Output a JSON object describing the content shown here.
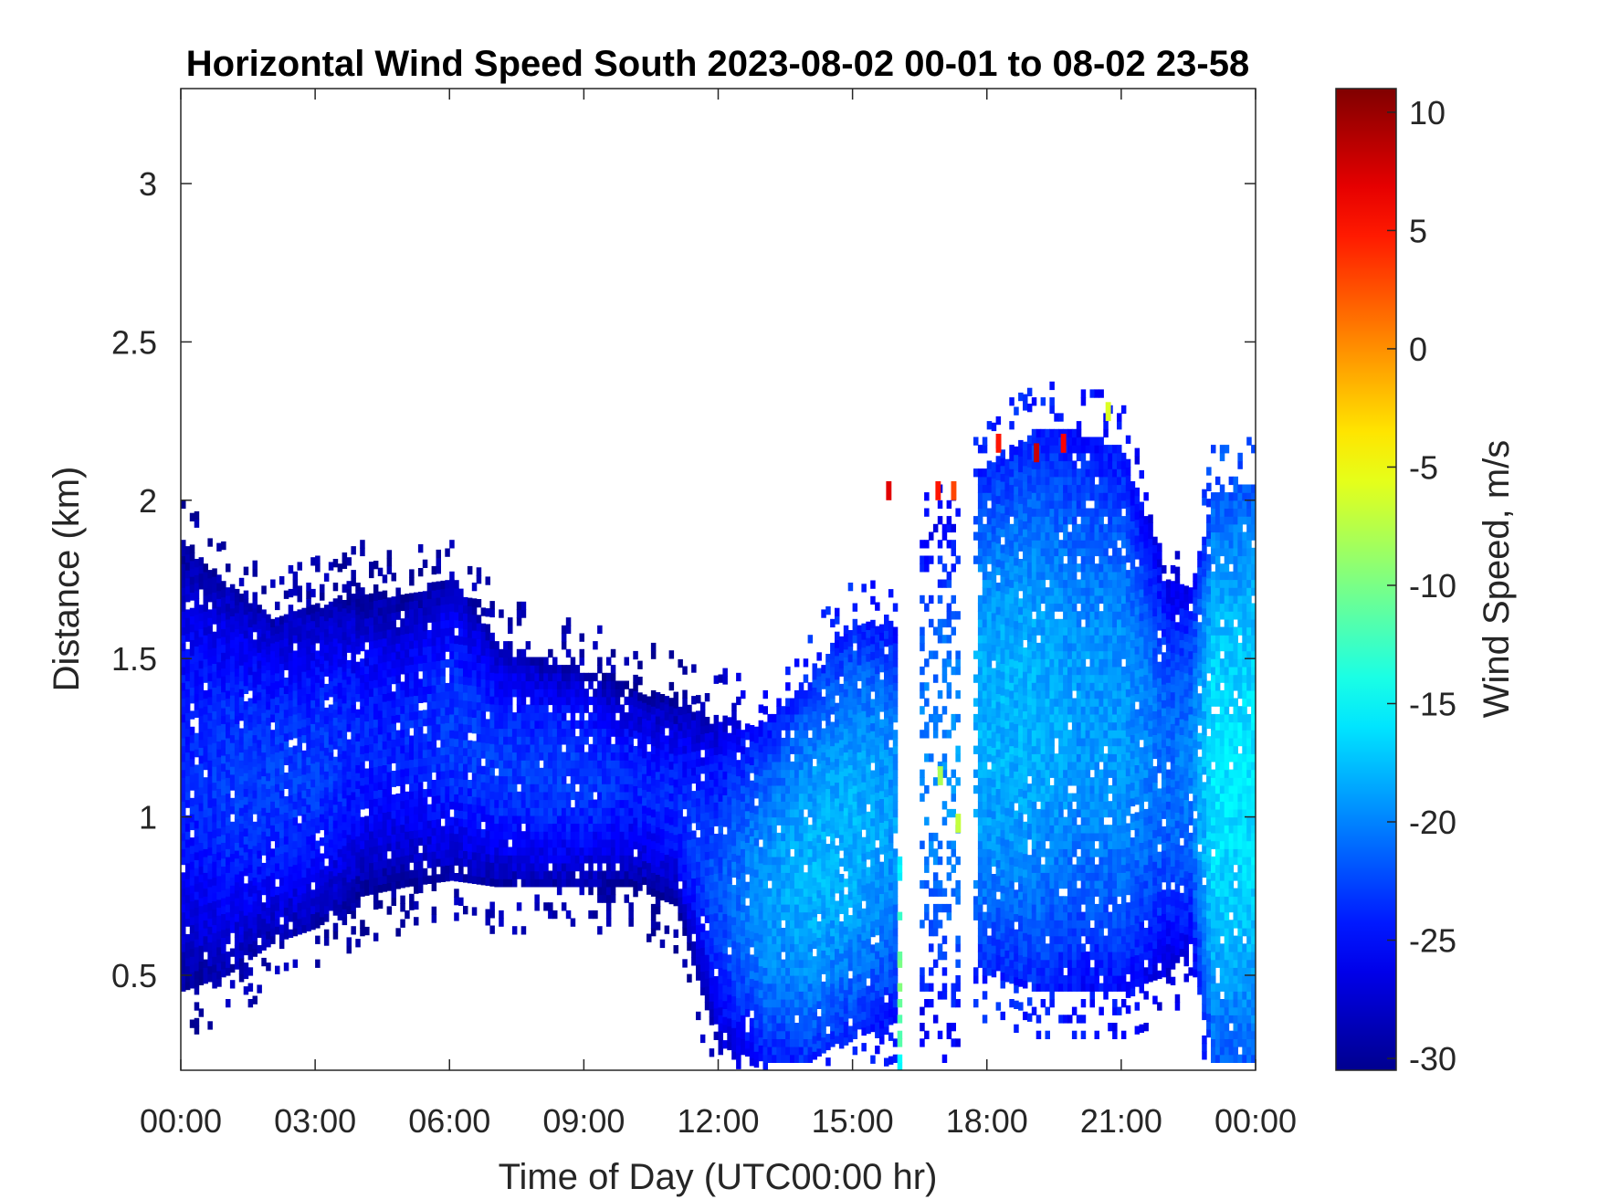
{
  "chart_data": {
    "type": "heatmap",
    "title": "Horizontal Wind Speed South 2023-08-02 00-01 to 08-02 23-58",
    "xlabel": "Time of Day (UTC00:00 hr)",
    "ylabel": "Distance (km)",
    "x_tick_labels": [
      "00:00",
      "03:00",
      "06:00",
      "09:00",
      "12:00",
      "15:00",
      "18:00",
      "21:00",
      "00:00"
    ],
    "xlim_hours": [
      0,
      24
    ],
    "y_ticks": [
      0.5,
      1,
      1.5,
      2,
      2.5,
      3
    ],
    "y_tick_labels": [
      "0.5",
      "1",
      "1.5",
      "2",
      "2.5",
      "3"
    ],
    "ylim": [
      0.2,
      3.3
    ],
    "colorbar": {
      "label": "Wind Speed, m/s",
      "ticks": [
        10,
        5,
        0,
        -5,
        -10,
        -15,
        -20,
        -25,
        -30
      ],
      "tick_labels": [
        "10",
        "5",
        "0",
        "-5",
        "-10",
        "-15",
        "-20",
        "-25",
        "-30"
      ],
      "range": [
        -30.5,
        11
      ],
      "colormap": "jet",
      "colormap_stops": [
        "#00008F",
        "#0000FF",
        "#00FFFF",
        "#FFFF00",
        "#FF0000",
        "#800000"
      ]
    },
    "grid": false,
    "echo_profile": {
      "hours": [
        0.0,
        1.0,
        2.0,
        3.0,
        4.0,
        5.0,
        6.0,
        7.0,
        8.0,
        9.0,
        10.0,
        11.0,
        12.0,
        13.0,
        14.0,
        15.0,
        15.9,
        16.1,
        16.5,
        17.5,
        17.7,
        18.0,
        19.0,
        20.0,
        21.0,
        22.0,
        22.5,
        23.0,
        24.0
      ],
      "top_km": [
        1.85,
        1.72,
        1.62,
        1.65,
        1.7,
        1.68,
        1.75,
        1.55,
        1.48,
        1.45,
        1.4,
        1.35,
        1.3,
        1.28,
        1.45,
        1.6,
        1.6,
        0.0,
        1.9,
        1.9,
        2.05,
        2.1,
        2.2,
        2.2,
        2.15,
        1.75,
        1.7,
        2.0,
        2.05
      ],
      "bottom_km": [
        0.45,
        0.5,
        0.6,
        0.65,
        0.75,
        0.78,
        0.8,
        0.78,
        0.78,
        0.78,
        0.78,
        0.72,
        0.25,
        0.2,
        0.2,
        0.3,
        0.35,
        0.0,
        0.35,
        0.35,
        0.5,
        0.5,
        0.45,
        0.45,
        0.45,
        0.5,
        0.6,
        0.2,
        0.2
      ],
      "core_speed_ms": [
        -24,
        -23,
        -23,
        -23,
        -24,
        -24,
        -23,
        -23,
        -23,
        -23,
        -24,
        -24,
        -22,
        -19,
        -18,
        -18,
        -19,
        0,
        -20,
        -19,
        -18,
        -18,
        -18,
        -19,
        -19,
        -21,
        -20,
        -16,
        -16
      ]
    },
    "gaps_hours": [
      [
        0.97,
        1.02
      ],
      [
        11.47,
        11.52
      ],
      [
        16.1,
        16.5
      ],
      [
        17.4,
        17.65
      ]
    ],
    "notable_values": [
      {
        "hour": 15.75,
        "km": 2.0,
        "speed_ms": 7
      },
      {
        "hour": 16.85,
        "km": 2.0,
        "speed_ms": 5
      },
      {
        "hour": 17.2,
        "km": 2.0,
        "speed_ms": 3
      },
      {
        "hour": 18.2,
        "km": 2.15,
        "speed_ms": 5
      },
      {
        "hour": 19.05,
        "km": 2.12,
        "speed_ms": 8
      },
      {
        "hour": 19.65,
        "km": 2.15,
        "speed_ms": 6
      },
      {
        "hour": 20.65,
        "km": 2.25,
        "speed_ms": -6
      },
      {
        "hour": 16.9,
        "km": 1.1,
        "speed_ms": -8
      },
      {
        "hour": 17.3,
        "km": 0.95,
        "speed_ms": -7
      }
    ]
  }
}
